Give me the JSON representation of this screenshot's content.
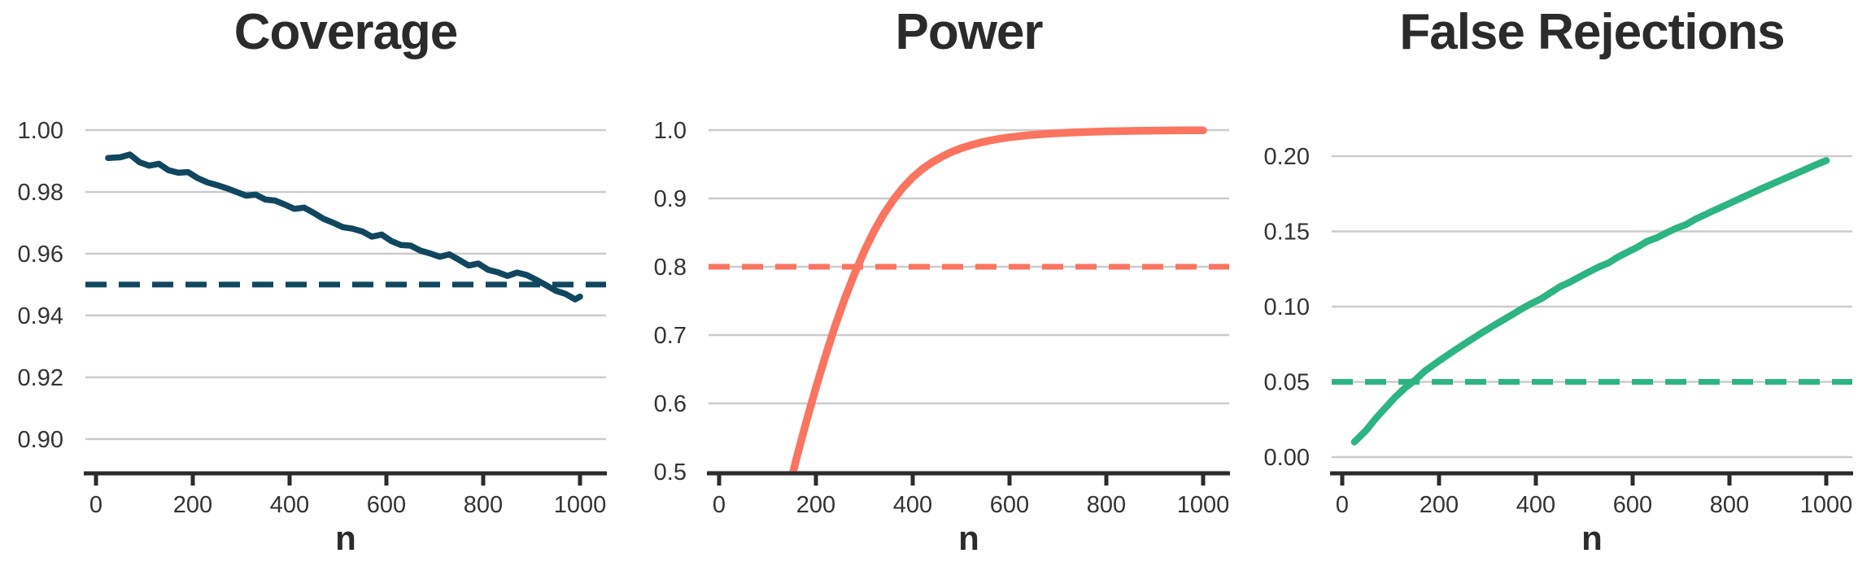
{
  "palette": {
    "background": "#ffffff",
    "grid_color": "#cccccc",
    "axis_color": "#2b2b2b",
    "tick_label_color": "#333333",
    "title_color": "#2b2b2b",
    "coverage_color": "#10475e",
    "power_color": "#fa7460",
    "false_rejections_color": "#2db483"
  },
  "chart_data": [
    {
      "type": "line",
      "title": "Coverage",
      "xlabel": "n",
      "series_name": "coverage",
      "color": "#10475e",
      "line_width": 7.5,
      "ref_line": {
        "value": 0.95,
        "style": "dashed"
      },
      "legend": "none",
      "grid": "horizontal",
      "xlim": [
        -22,
        1054
      ],
      "ylim": [
        0.8889,
        1.00526
      ],
      "x_ticks": [
        0,
        200,
        400,
        600,
        800,
        1000
      ],
      "x_tick_labels": [
        "0",
        "200",
        "400",
        "600",
        "800",
        "1000"
      ],
      "y_ticks": [
        1.0,
        0.98,
        0.96,
        0.94,
        0.92,
        0.9
      ],
      "y_tick_labels": [
        "1.00",
        "0.98",
        "0.96",
        "0.94",
        "0.92",
        "0.90"
      ],
      "x": [
        25,
        50,
        70,
        90,
        110,
        130,
        150,
        170,
        190,
        210,
        230,
        250,
        270,
        290,
        310,
        330,
        350,
        370,
        390,
        410,
        430,
        450,
        470,
        490,
        510,
        530,
        550,
        570,
        590,
        610,
        630,
        650,
        670,
        690,
        710,
        730,
        750,
        770,
        790,
        810,
        830,
        850,
        870,
        890,
        910,
        930,
        950,
        970,
        990,
        1000
      ],
      "y": [
        0.991,
        0.9912,
        0.9921,
        0.9896,
        0.9885,
        0.9891,
        0.987,
        0.9862,
        0.9864,
        0.9845,
        0.9831,
        0.9822,
        0.9812,
        0.98,
        0.9788,
        0.9791,
        0.9775,
        0.9772,
        0.9759,
        0.9745,
        0.9749,
        0.9732,
        0.9713,
        0.97,
        0.9686,
        0.9681,
        0.9672,
        0.9655,
        0.9662,
        0.9641,
        0.9628,
        0.9626,
        0.961,
        0.9601,
        0.959,
        0.9598,
        0.958,
        0.9562,
        0.9568,
        0.9548,
        0.954,
        0.9528,
        0.9539,
        0.9531,
        0.9515,
        0.9498,
        0.948,
        0.947,
        0.9452,
        0.9461
      ]
    },
    {
      "type": "line",
      "title": "Power",
      "xlabel": "n",
      "series_name": "power",
      "color": "#fa7460",
      "line_width": 9.5,
      "ref_line": {
        "value": 0.8,
        "style": "dashed"
      },
      "legend": "none",
      "grid": "horizontal",
      "xlim": [
        -22,
        1054
      ],
      "ylim": [
        0.4976,
        1.0238
      ],
      "x_ticks": [
        0,
        200,
        400,
        600,
        800,
        1000
      ],
      "x_tick_labels": [
        "0",
        "200",
        "400",
        "600",
        "800",
        "1000"
      ],
      "y_ticks": [
        1.0,
        0.9,
        0.8,
        0.7,
        0.6,
        0.5
      ],
      "y_tick_labels": [
        "1.0",
        "0.9",
        "0.8",
        "0.7",
        "0.6",
        "0.5"
      ],
      "x": [
        140,
        160,
        180,
        200,
        220,
        240,
        260,
        280,
        300,
        320,
        340,
        360,
        380,
        400,
        420,
        440,
        460,
        480,
        500,
        520,
        540,
        560,
        580,
        600,
        640,
        680,
        720,
        760,
        800,
        840,
        880,
        920,
        960,
        1000
      ],
      "y": [
        0.462,
        0.52,
        0.573,
        0.623,
        0.67,
        0.714,
        0.754,
        0.79,
        0.823,
        0.852,
        0.877,
        0.898,
        0.916,
        0.931,
        0.943,
        0.953,
        0.961,
        0.968,
        0.9735,
        0.978,
        0.9818,
        0.9849,
        0.9874,
        0.9895,
        0.9926,
        0.9948,
        0.9963,
        0.9974,
        0.9982,
        0.9987,
        0.9991,
        0.9994,
        0.9996,
        0.9997
      ]
    },
    {
      "type": "line",
      "title": "False Rejections",
      "xlabel": "n",
      "series_name": "false_rejections",
      "color": "#2db483",
      "line_width": 8.5,
      "ref_line": {
        "value": 0.05,
        "style": "dashed"
      },
      "legend": "none",
      "grid": "horizontal",
      "xlim": [
        -22,
        1054
      ],
      "ylim": [
        -0.01081,
        0.2281
      ],
      "x_ticks": [
        0,
        200,
        400,
        600,
        800,
        1000
      ],
      "x_tick_labels": [
        "0",
        "200",
        "400",
        "600",
        "800",
        "1000"
      ],
      "y_ticks": [
        0.2,
        0.15,
        0.1,
        0.05,
        0.0
      ],
      "y_tick_labels": [
        "0.20",
        "0.15",
        "0.10",
        "0.05",
        "0.00"
      ],
      "x": [
        25,
        50,
        70,
        90,
        110,
        130,
        150,
        170,
        190,
        210,
        230,
        250,
        270,
        290,
        310,
        330,
        350,
        370,
        390,
        410,
        430,
        450,
        470,
        490,
        510,
        530,
        550,
        570,
        590,
        610,
        630,
        650,
        670,
        690,
        710,
        730,
        750,
        770,
        790,
        810,
        830,
        850,
        870,
        890,
        910,
        930,
        950,
        970,
        990,
        1000
      ],
      "y": [
        0.01,
        0.018,
        0.026,
        0.033,
        0.04,
        0.046,
        0.051,
        0.057,
        0.0617,
        0.0661,
        0.0705,
        0.0747,
        0.0788,
        0.0829,
        0.0868,
        0.0907,
        0.0945,
        0.0983,
        0.102,
        0.105,
        0.1092,
        0.1133,
        0.1162,
        0.1197,
        0.1231,
        0.1264,
        0.129,
        0.133,
        0.1363,
        0.1395,
        0.1434,
        0.1458,
        0.149,
        0.1521,
        0.1545,
        0.1582,
        0.1612,
        0.1642,
        0.1671,
        0.1701,
        0.173,
        0.176,
        0.1789,
        0.1817,
        0.1846,
        0.1874,
        0.1902,
        0.193,
        0.1958,
        0.1971
      ]
    }
  ]
}
